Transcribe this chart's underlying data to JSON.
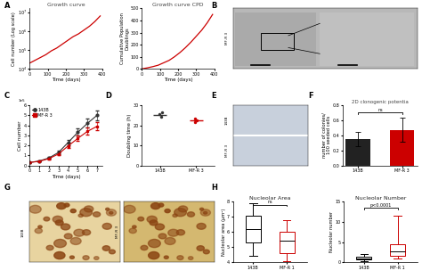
{
  "panel_A_left": {
    "title": "Growth curve",
    "xlabel": "Time (days)",
    "ylabel": "Cell number (Log scale)",
    "x": [
      0,
      30,
      60,
      90,
      120,
      150,
      180,
      210,
      240,
      270,
      300,
      330,
      360,
      390
    ],
    "y_log": [
      4.3,
      4.45,
      4.6,
      4.75,
      4.95,
      5.1,
      5.3,
      5.5,
      5.7,
      5.85,
      6.05,
      6.25,
      6.5,
      6.8
    ],
    "color": "#cc0000",
    "xlim": [
      0,
      400
    ],
    "ylim_log": [
      4.0,
      7.2
    ],
    "yticks": [
      4.0,
      5.0,
      6.0,
      7.0
    ],
    "ytick_labels": [
      "10^4",
      "10^5",
      "10^6",
      "10^7"
    ],
    "xticks": [
      0,
      100,
      200,
      300,
      400
    ]
  },
  "panel_A_right": {
    "title": "Growth curve CPD",
    "xlabel": "Time (days)",
    "ylabel": "Cumulative Population\nDoublings",
    "x": [
      0,
      30,
      60,
      90,
      120,
      150,
      180,
      210,
      240,
      270,
      300,
      330,
      360,
      390
    ],
    "y": [
      0,
      8,
      18,
      30,
      50,
      70,
      100,
      135,
      175,
      220,
      270,
      320,
      380,
      450
    ],
    "color": "#cc0000",
    "xlim": [
      0,
      400
    ],
    "ylim": [
      0,
      500
    ],
    "yticks": [
      0,
      100,
      200,
      300,
      400,
      500
    ],
    "xticks": [
      0,
      100,
      200,
      300,
      400
    ]
  },
  "panel_C": {
    "xlabel": "Time (days)",
    "ylabel": "Cell number",
    "x": [
      0,
      1,
      2,
      3,
      4,
      5,
      6,
      7
    ],
    "y_143B": [
      30000,
      45000,
      75000,
      130000,
      230000,
      330000,
      420000,
      500000
    ],
    "y_MFR3": [
      30000,
      42000,
      68000,
      115000,
      195000,
      270000,
      340000,
      390000
    ],
    "err_143B": [
      3000,
      5000,
      8000,
      15000,
      25000,
      35000,
      45000,
      50000
    ],
    "err_MFR3": [
      3000,
      4000,
      7000,
      12000,
      20000,
      28000,
      35000,
      40000
    ],
    "color_143B": "#333333",
    "color_MFR3": "#cc0000",
    "xlim": [
      0,
      7.5
    ],
    "ylim": [
      0,
      600000
    ],
    "xticks": [
      0,
      1,
      2,
      3,
      4,
      5,
      6,
      7
    ],
    "legend": [
      "143B",
      "MF-R 3"
    ]
  },
  "panel_D": {
    "ylabel": "Doubling time (h)",
    "categories": [
      "143B",
      "MF-R 3"
    ],
    "data_143B": [
      25.5,
      26.5,
      24.0
    ],
    "data_MFR3": [
      22.5,
      23.5,
      21.5
    ],
    "mean_143B": 25.3,
    "mean_MFR3": 22.5,
    "color_143B": "#333333",
    "color_MFR3": "#cc0000",
    "ylim": [
      0,
      30
    ],
    "yticks": [
      0,
      10,
      20,
      30
    ]
  },
  "panel_F": {
    "title": "2D clonogenic potentia",
    "ylabel": "number of colonies/\n100 seeded cells",
    "categories": [
      "143B",
      "MF-R 3"
    ],
    "values": [
      0.35,
      0.47
    ],
    "errors": [
      0.09,
      0.16
    ],
    "colors": [
      "#222222",
      "#cc0000"
    ],
    "ylim": [
      0,
      0.8
    ],
    "yticks": [
      0.0,
      0.2,
      0.4,
      0.6,
      0.8
    ],
    "significance": "ns"
  },
  "panel_H_left": {
    "title": "Nucleolar Area",
    "ylabel": "Nucleolar area (μm²)",
    "categories": [
      "143B",
      "MF-R 1"
    ],
    "box_143B": {
      "med": 6.2,
      "q1": 5.3,
      "q3": 7.1,
      "whislo": 4.4,
      "whishi": 7.9
    },
    "box_MFR1": {
      "med": 5.4,
      "q1": 4.6,
      "q3": 6.0,
      "whislo": 4.1,
      "whishi": 6.8
    },
    "edge_MFR1": "#cc0000",
    "ylim": [
      4,
      8
    ],
    "yticks": [
      4,
      5,
      6,
      7,
      8
    ],
    "significance": "ns"
  },
  "panel_H_right": {
    "title": "Nucleolar Number",
    "ylabel": "Nucleolar number",
    "categories": [
      "143B",
      "MF-R 1"
    ],
    "box_143B": {
      "med": 1.0,
      "q1": 0.7,
      "q3": 1.3,
      "whislo": 0.3,
      "whishi": 2.0
    },
    "box_MFR1": {
      "med": 2.8,
      "q1": 1.6,
      "q3": 4.5,
      "whislo": 1.0,
      "whishi": 11.5
    },
    "edge_MFR1": "#cc0000",
    "ylim": [
      0,
      15
    ],
    "yticks": [
      0,
      5,
      10,
      15
    ],
    "significance": "p<0.0001"
  },
  "bg_color": "#ffffff",
  "panel_label_fontsize": 6,
  "title_fontsize": 4.5,
  "axis_label_fontsize": 4,
  "tick_fontsize": 3.5,
  "legend_fontsize": 3.5
}
